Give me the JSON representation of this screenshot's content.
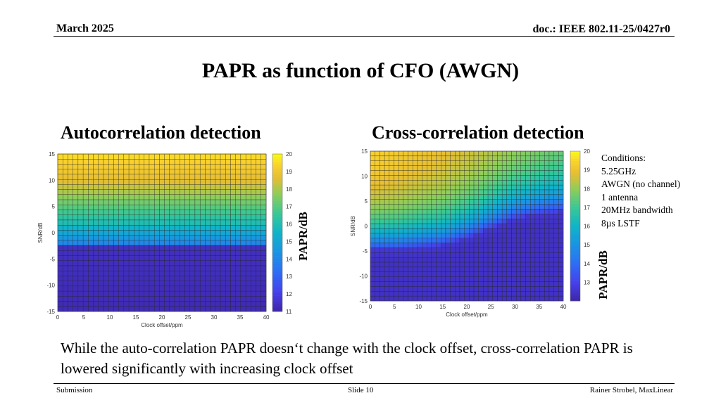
{
  "header": {
    "date": "March 2025",
    "doc": "doc.: IEEE 802.11-25/0427r0"
  },
  "title": "PAPR as function of CFO (AWGN)",
  "left_subtitle": "Autocorrelation detection",
  "right_subtitle": "Cross-correlation detection",
  "colorbar_label": "PAPR/dB",
  "conditions": [
    "Conditions:",
    "5.25GHz",
    "AWGN (no channel)",
    "1 antenna",
    "20MHz bandwidth",
    "8µs LSTF"
  ],
  "bottom_text": "While the auto-correlation PAPR doesn‘t change with the clock offset, cross-correlation PAPR is lowered significantly with increasing clock offset",
  "footer": {
    "left": "Submission",
    "center": "Slide 10",
    "right": "Rainer Strobel, MaxLinear"
  },
  "chart_data": [
    {
      "type": "heatmap",
      "title": "",
      "xlabel": "Clock offset/ppm",
      "ylabel": "SNR/dB",
      "xlim": [
        0,
        40
      ],
      "ylim": [
        -15,
        15
      ],
      "xticks": [
        0,
        5,
        10,
        15,
        20,
        25,
        30,
        35,
        40
      ],
      "yticks": [
        15,
        10,
        5,
        0,
        -5,
        -10,
        -15
      ],
      "colorbar": {
        "label": "PAPR/dB",
        "range": [
          11,
          20
        ],
        "ticks": [
          20,
          19,
          18,
          17,
          16,
          15,
          14,
          13,
          12,
          11
        ]
      },
      "note": "PAPR approx. 11 dB for SNR below -3 dB, rising to approx. 19.5 dB at SNR 15 dB; independent of clock offset",
      "snr_profile": {
        "snr": [
          -15,
          -3,
          -2,
          0,
          2,
          5,
          8,
          10,
          15
        ],
        "papr": [
          11.2,
          11.4,
          14,
          15,
          16,
          17,
          18,
          18.6,
          19.5
        ]
      }
    },
    {
      "type": "heatmap",
      "title": "",
      "xlabel": "Clock offset/ppm",
      "ylabel": "SNR/dB",
      "xlim": [
        0,
        40
      ],
      "ylim": [
        -15,
        15
      ],
      "xticks": [
        0,
        5,
        10,
        15,
        20,
        25,
        30,
        35,
        40
      ],
      "yticks": [
        15,
        10,
        5,
        0,
        -5,
        -10,
        -15
      ],
      "colorbar": {
        "label": "PAPR/dB",
        "range": [
          12,
          20
        ],
        "ticks": [
          20,
          19,
          18,
          17,
          16,
          15,
          14,
          13
        ]
      },
      "note": "PAPR approx. 12.5 dB below a threshold SNR that rises from about -5 dB at 0 ppm to about 3 dB at 40 ppm; above threshold PAPR rises toward 20 dB, lowered at higher clock offset",
      "threshold_snr": {
        "ppm": [
          0,
          5,
          10,
          15,
          20,
          25,
          30,
          35,
          40
        ],
        "snr": [
          -5,
          -5,
          -4.5,
          -4,
          -2.5,
          -0.5,
          1.5,
          2.5,
          3
        ]
      }
    }
  ]
}
